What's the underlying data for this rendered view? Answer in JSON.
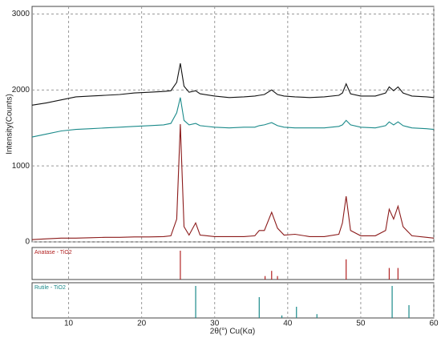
{
  "chart_data": [
    {
      "type": "line",
      "ylabel": "Intensity(Counts)",
      "xlabel": "2θ(°) Cu(Kα)",
      "xlim": [
        5,
        60
      ],
      "xticks": [
        10,
        20,
        30,
        40,
        50,
        60
      ],
      "ylim": [
        0,
        3100
      ],
      "yticks": [
        0,
        1000,
        2000,
        3000
      ],
      "grid": true,
      "x": [
        5,
        7,
        9,
        11,
        13,
        15,
        17,
        19,
        21,
        23,
        24,
        24.8,
        25.3,
        25.8,
        26.5,
        27.4,
        28,
        30,
        32,
        34,
        35.5,
        36.1,
        36.8,
        37.8,
        38.6,
        39.5,
        41,
        43,
        45,
        47,
        47.5,
        48,
        48.6,
        50,
        52,
        53.4,
        53.9,
        54.5,
        55.1,
        55.8,
        57,
        59,
        60
      ],
      "series": [
        {
          "color": "#111111",
          "values": [
            1800,
            1830,
            1870,
            1910,
            1920,
            1930,
            1940,
            1960,
            1970,
            1980,
            1990,
            2100,
            2350,
            2050,
            1970,
            1990,
            1950,
            1920,
            1900,
            1910,
            1920,
            1930,
            1940,
            2000,
            1940,
            1920,
            1910,
            1900,
            1910,
            1930,
            1960,
            2080,
            1950,
            1920,
            1920,
            1960,
            2040,
            1990,
            2040,
            1960,
            1920,
            1910,
            1900
          ]
        },
        {
          "color": "#1a8a8a",
          "values": [
            1380,
            1420,
            1460,
            1480,
            1490,
            1500,
            1510,
            1520,
            1530,
            1540,
            1560,
            1700,
            1900,
            1600,
            1540,
            1560,
            1530,
            1510,
            1500,
            1510,
            1510,
            1530,
            1540,
            1570,
            1530,
            1510,
            1500,
            1500,
            1500,
            1520,
            1540,
            1600,
            1540,
            1510,
            1500,
            1530,
            1580,
            1540,
            1580,
            1530,
            1500,
            1490,
            1480
          ]
        },
        {
          "color": "#8b1a1a",
          "values": [
            30,
            40,
            50,
            50,
            55,
            60,
            60,
            65,
            65,
            70,
            80,
            300,
            1550,
            200,
            90,
            250,
            90,
            70,
            70,
            70,
            80,
            150,
            150,
            390,
            180,
            90,
            100,
            70,
            70,
            100,
            250,
            600,
            150,
            80,
            80,
            150,
            430,
            300,
            470,
            200,
            80,
            60,
            50
          ]
        }
      ]
    },
    {
      "type": "stem",
      "title": "Anatase - TiO2",
      "color": "#b22222",
      "x": [
        25.3,
        36.9,
        37.8,
        38.6,
        48.0,
        53.9,
        55.1
      ],
      "values": [
        100,
        12,
        30,
        12,
        70,
        40,
        40
      ]
    },
    {
      "type": "stem",
      "title": "Rutile - TiO2",
      "color": "#1a8a8a",
      "x": [
        27.4,
        36.1,
        39.2,
        41.2,
        44.0,
        54.3,
        56.6
      ],
      "values": [
        100,
        65,
        8,
        35,
        12,
        100,
        40
      ]
    }
  ]
}
